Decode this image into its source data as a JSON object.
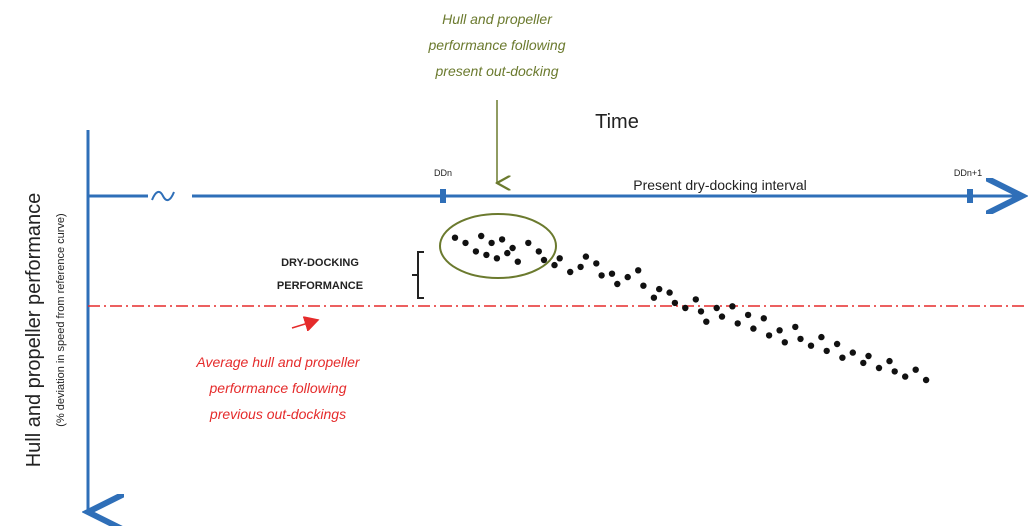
{
  "annotations": {
    "top_callout": [
      "Hull and propeller",
      "performance following",
      "present out-docking"
    ],
    "time_label": "Time",
    "ddn_label": "DDn",
    "ddn1_label": "DDn+1",
    "interval_label": "Present dry-docking interval",
    "dry_docking_label": [
      "DRY-DOCKING",
      "PERFORMANCE"
    ],
    "average_label": [
      "Average hull and propeller",
      "performance following",
      "previous out-dockings"
    ]
  },
  "y_axis": {
    "title": "Hull and propeller performance",
    "subtitle": "(% deviation in speed from reference curve)"
  },
  "chart_data": {
    "type": "scatter",
    "description_points": "relative position along dry-docking interval (x: 0=DDn, 1=DDn+1) and relative performance drop (y: 0=baseline axis, higher=more deviation)",
    "points": [
      [
        0.02,
        0.17
      ],
      [
        0.04,
        0.2
      ],
      [
        0.07,
        0.16
      ],
      [
        0.09,
        0.2
      ],
      [
        0.11,
        0.18
      ],
      [
        0.13,
        0.23
      ],
      [
        0.06,
        0.25
      ],
      [
        0.08,
        0.27
      ],
      [
        0.1,
        0.29
      ],
      [
        0.12,
        0.26
      ],
      [
        0.14,
        0.31
      ],
      [
        0.16,
        0.2
      ],
      [
        0.18,
        0.25
      ],
      [
        0.19,
        0.3
      ],
      [
        0.21,
        0.33
      ],
      [
        0.22,
        0.29
      ],
      [
        0.24,
        0.37
      ],
      [
        0.26,
        0.34
      ],
      [
        0.27,
        0.28
      ],
      [
        0.29,
        0.32
      ],
      [
        0.3,
        0.39
      ],
      [
        0.32,
        0.38
      ],
      [
        0.33,
        0.44
      ],
      [
        0.35,
        0.4
      ],
      [
        0.37,
        0.36
      ],
      [
        0.38,
        0.45
      ],
      [
        0.4,
        0.52
      ],
      [
        0.41,
        0.47
      ],
      [
        0.43,
        0.49
      ],
      [
        0.44,
        0.55
      ],
      [
        0.46,
        0.58
      ],
      [
        0.48,
        0.53
      ],
      [
        0.49,
        0.6
      ],
      [
        0.5,
        0.66
      ],
      [
        0.52,
        0.58
      ],
      [
        0.53,
        0.63
      ],
      [
        0.55,
        0.57
      ],
      [
        0.56,
        0.67
      ],
      [
        0.58,
        0.62
      ],
      [
        0.59,
        0.7
      ],
      [
        0.61,
        0.64
      ],
      [
        0.62,
        0.74
      ],
      [
        0.64,
        0.71
      ],
      [
        0.65,
        0.78
      ],
      [
        0.67,
        0.69
      ],
      [
        0.68,
        0.76
      ],
      [
        0.7,
        0.8
      ],
      [
        0.72,
        0.75
      ],
      [
        0.73,
        0.83
      ],
      [
        0.75,
        0.79
      ],
      [
        0.76,
        0.87
      ],
      [
        0.78,
        0.84
      ],
      [
        0.8,
        0.9
      ],
      [
        0.81,
        0.86
      ],
      [
        0.83,
        0.93
      ],
      [
        0.85,
        0.89
      ],
      [
        0.86,
        0.95
      ],
      [
        0.88,
        0.98
      ],
      [
        0.9,
        0.94
      ],
      [
        0.92,
        1.0
      ]
    ]
  },
  "colors": {
    "axis": "#2f6fb8",
    "callout_green": "#6b7a2e",
    "red": "#e52b2b",
    "text": "#222222"
  }
}
